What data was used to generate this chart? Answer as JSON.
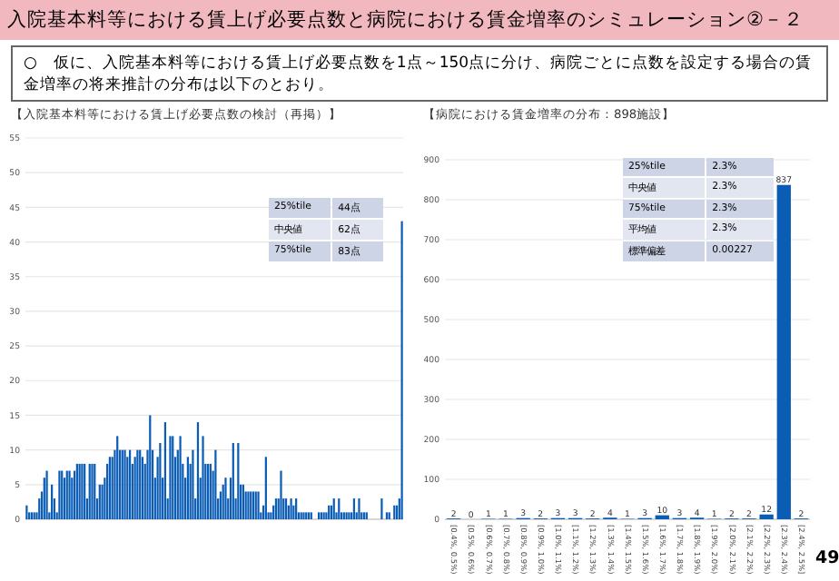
{
  "chart_data": [
    {
      "type": "bar",
      "title": "【入院基本料等における賃上げ必要点数の検討（再掲）】",
      "annotations": [
        "入院基本料等における賃上げ必要点数と病院における賃金増率のシミュレーション②－２",
        "○　仮に、入院基本料等における賃上げ必要点数を1点～150点に分け、病院ごとに点数を設定する場合の賃金増率の将来推計の分布は以下のとおり。",
        "25%tile",
        "44点",
        "中央値",
        "62点",
        "75%tile",
        "83点"
      ],
      "categories": [
        null,
        null,
        null,
        null,
        null,
        null,
        null,
        null,
        null,
        null,
        null,
        null,
        null,
        null,
        null,
        null,
        null,
        null,
        null,
        null,
        null,
        null,
        null,
        null,
        null,
        null,
        null,
        null,
        null,
        null,
        null,
        null,
        null,
        null,
        null,
        null,
        null,
        null,
        null,
        null,
        null,
        null,
        null,
        null,
        null,
        null,
        null,
        null,
        null,
        null,
        null,
        null,
        null,
        null,
        null,
        null,
        null,
        null,
        null,
        null,
        null,
        null,
        null,
        null,
        null,
        null,
        null,
        null,
        null,
        null,
        null,
        null,
        null,
        null,
        null,
        null,
        null,
        null,
        null,
        null,
        null,
        null,
        null,
        null,
        null,
        null,
        null,
        null,
        null,
        null,
        null,
        null,
        null,
        null,
        null,
        null,
        null,
        null,
        null,
        null,
        null,
        null,
        null,
        null,
        null,
        null,
        null,
        null,
        null,
        null,
        null,
        null,
        null,
        null,
        null,
        null,
        null,
        null,
        null,
        null,
        null,
        null,
        null,
        null,
        null,
        null,
        null,
        null,
        null,
        null,
        null,
        null,
        null,
        null,
        null,
        null,
        null,
        null,
        null,
        null,
        null,
        null,
        null,
        null,
        null,
        null,
        null,
        null,
        null,
        null
      ],
      "values": [
        2,
        1,
        1,
        1,
        1,
        3,
        4,
        6,
        7,
        1,
        5,
        3,
        1,
        7,
        7,
        6,
        7,
        7,
        6,
        7,
        8,
        8,
        8,
        8,
        3,
        8,
        8,
        8,
        3,
        5,
        5,
        6,
        8,
        9,
        9,
        10,
        12,
        10,
        10,
        10,
        9,
        10,
        8,
        9,
        10,
        10,
        9,
        8,
        10,
        15,
        10,
        6,
        9,
        11,
        6,
        14,
        3,
        12,
        12,
        9,
        10,
        12,
        8,
        6,
        9,
        8,
        10,
        3,
        14,
        6,
        12,
        8,
        8,
        8,
        7,
        10,
        3,
        4,
        5,
        6,
        3,
        6,
        11,
        3,
        11,
        5,
        5,
        4,
        4,
        4,
        4,
        4,
        4,
        1,
        2,
        9,
        1,
        1,
        2,
        3,
        3,
        7,
        3,
        3,
        2,
        3,
        2,
        3,
        1,
        1,
        1,
        1,
        1,
        1,
        0,
        0,
        1,
        1,
        1,
        1,
        2,
        2,
        3,
        1,
        3,
        1,
        1,
        1,
        1,
        1,
        3,
        1,
        3,
        1,
        1,
        1,
        0,
        0,
        0,
        0,
        0,
        3,
        0,
        1,
        1,
        0,
        2,
        2,
        3,
        43
      ],
      "color": "#0b5cb5",
      "ylim": [
        0,
        55
      ],
      "yticks": [
        0,
        5,
        10,
        15,
        20,
        25,
        30,
        35,
        40,
        45,
        50,
        55
      ],
      "grid": "y"
    },
    {
      "type": "bar",
      "title": "【病院における賃金増率の分布：898施設】",
      "annotations": [
        "25%tile",
        "2.3%",
        "中央値",
        "2.3%",
        "75%tile",
        "2.3%",
        "平均値",
        "2.3%",
        "標準偏差",
        "0.00227",
        "49"
      ],
      "categories": [
        "[0.4%, 0.5%)",
        "[0.5%, 0.6%)",
        "[0.6%, 0.7%)",
        "[0.7%, 0.8%)",
        "[0.8%, 0.9%)",
        "[0.9%, 1.0%)",
        "[1.0%, 1.1%)",
        "[1.1%, 1.2%)",
        "[1.2%, 1.3%)",
        "[1.3%, 1.4%)",
        "[1.4%, 1.5%)",
        "[1.5%, 1.6%)",
        "[1.6%, 1.7%)",
        "[1.7%, 1.8%)",
        "[1.8%, 1.9%)",
        "[1.9%, 2.0%)",
        "[2.0%, 2.1%)",
        "[2.1%, 2.2%)",
        "[2.2%, 2.3%)",
        "[2.3%, 2.4%)",
        "[2.4%, 2.5%]"
      ],
      "values": [
        2,
        0,
        1,
        1,
        3,
        2,
        3,
        3,
        2,
        4,
        1,
        3,
        10,
        3,
        4,
        1,
        2,
        2,
        12,
        837,
        2
      ],
      "color": "#0b5cb5",
      "data_labels": true,
      "ylim": [
        0,
        900
      ],
      "yticks": [
        0,
        100,
        200,
        300,
        400,
        500,
        600,
        700,
        800,
        900
      ],
      "grid": "y"
    }
  ]
}
